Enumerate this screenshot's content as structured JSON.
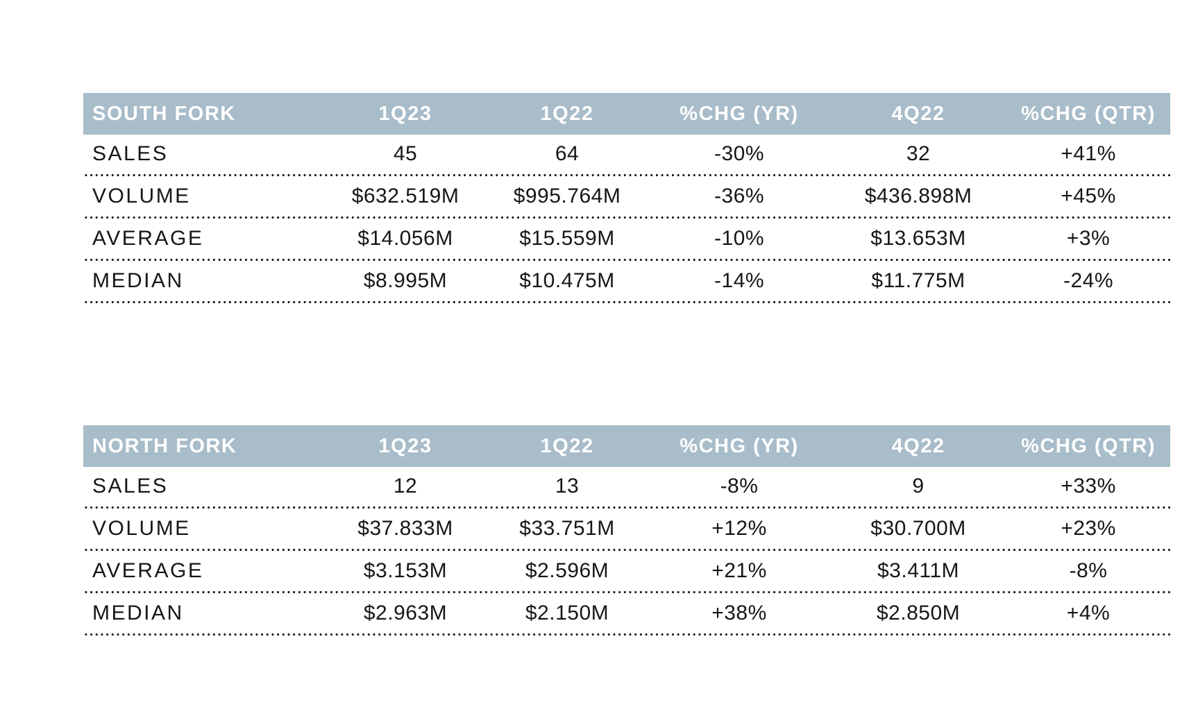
{
  "colors": {
    "header_band": "#a8bcca",
    "header_text": "#ffffff",
    "body_text": "#161616",
    "dot_color": "#111111"
  },
  "tables": [
    {
      "title": "SOUTH FORK",
      "columns": [
        "1Q23",
        "1Q22",
        "%CHG (YR)",
        "4Q22",
        "%CHG (QTR)"
      ],
      "rows": [
        {
          "label": "SALES",
          "values": [
            "45",
            "64",
            "-30%",
            "32",
            "+41%"
          ]
        },
        {
          "label": "VOLUME",
          "values": [
            "$632.519M",
            "$995.764M",
            "-36%",
            "$436.898M",
            "+45%"
          ]
        },
        {
          "label": "AVERAGE",
          "values": [
            "$14.056M",
            "$15.559M",
            "-10%",
            "$13.653M",
            "+3%"
          ]
        },
        {
          "label": "MEDIAN",
          "values": [
            "$8.995M",
            "$10.475M",
            "-14%",
            "$11.775M",
            "-24%"
          ]
        }
      ]
    },
    {
      "title": "NORTH FORK",
      "columns": [
        "1Q23",
        "1Q22",
        "%CHG (YR)",
        "4Q22",
        "%CHG (QTR)"
      ],
      "rows": [
        {
          "label": "SALES",
          "values": [
            "12",
            "13",
            "-8%",
            "9",
            "+33%"
          ]
        },
        {
          "label": "VOLUME",
          "values": [
            "$37.833M",
            "$33.751M",
            "+12%",
            "$30.700M",
            "+23%"
          ]
        },
        {
          "label": "AVERAGE",
          "values": [
            "$3.153M",
            "$2.596M",
            "+21%",
            "$3.411M",
            "-8%"
          ]
        },
        {
          "label": "MEDIAN",
          "values": [
            "$2.963M",
            "$2.150M",
            "+38%",
            "$2.850M",
            "+4%"
          ]
        }
      ]
    }
  ]
}
